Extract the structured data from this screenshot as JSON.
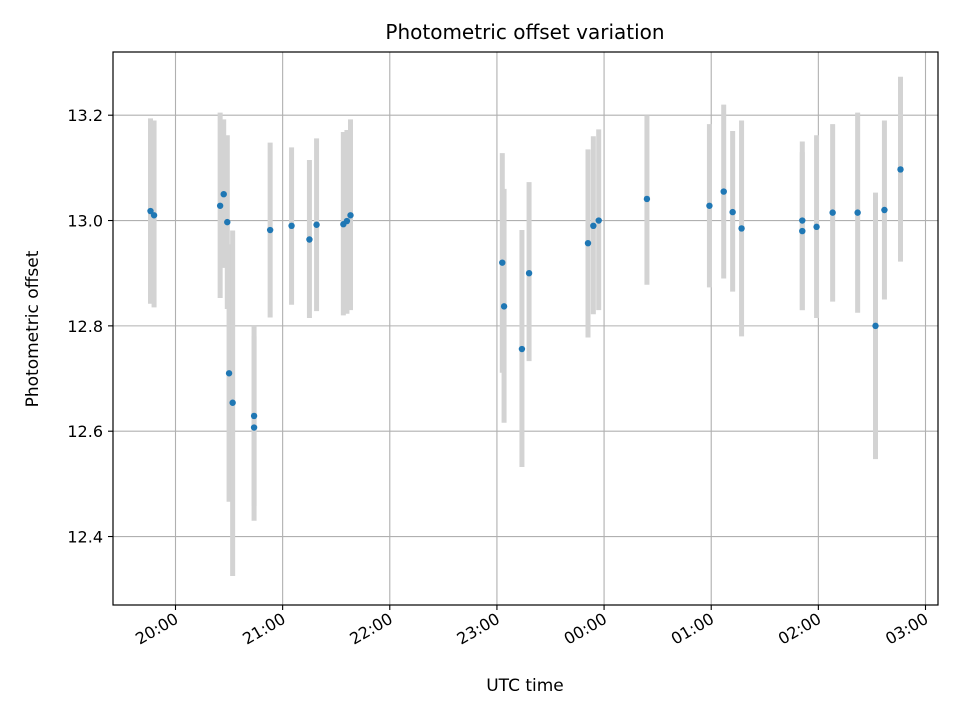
{
  "chart_data": {
    "type": "scatter",
    "title": "Photometric offset variation",
    "xlabel": "UTC time",
    "ylabel": "Photometric offset",
    "x_axis_kind": "time-of-day (UTC), crossing midnight",
    "xlim": [
      "19:25",
      "03:07"
    ],
    "ylim": [
      12.27,
      13.32
    ],
    "x_ticks": [
      "20:00",
      "21:00",
      "22:00",
      "23:00",
      "00:00",
      "01:00",
      "02:00",
      "03:00"
    ],
    "y_ticks": [
      12.4,
      12.6,
      12.8,
      13.0,
      13.2
    ],
    "y_tick_labels": [
      "12.4",
      "12.6",
      "12.8",
      "13.0",
      "13.2"
    ],
    "grid": true,
    "legend": "none",
    "colors": {
      "point": "#1f77b4",
      "errorbar": "#d3d3d3",
      "grid": "#b0b0b0",
      "axes": "#000000"
    },
    "series": [
      {
        "points": [
          {
            "t": "19:46",
            "y": 13.018,
            "lo": 12.842,
            "hi": 13.194
          },
          {
            "t": "19:48",
            "y": 13.01,
            "lo": 12.835,
            "hi": 13.19
          },
          {
            "t": "20:25",
            "y": 13.028,
            "lo": 12.853,
            "hi": 13.205
          },
          {
            "t": "20:27",
            "y": 13.05,
            "lo": 12.91,
            "hi": 13.192
          },
          {
            "t": "20:29",
            "y": 12.997,
            "lo": 12.832,
            "hi": 13.162
          },
          {
            "t": "20:30",
            "y": 12.71,
            "lo": 12.466,
            "hi": 12.955
          },
          {
            "t": "20:32",
            "y": 12.654,
            "lo": 12.325,
            "hi": 12.981
          },
          {
            "t": "20:44",
            "y": 12.629,
            "lo": 12.458,
            "hi": 12.8
          },
          {
            "t": "20:44",
            "y": 12.607,
            "lo": 12.43,
            "hi": 12.78
          },
          {
            "t": "20:53",
            "y": 12.982,
            "lo": 12.816,
            "hi": 13.148
          },
          {
            "t": "21:05",
            "y": 12.99,
            "lo": 12.84,
            "hi": 13.139
          },
          {
            "t": "21:15",
            "y": 12.964,
            "lo": 12.815,
            "hi": 13.115
          },
          {
            "t": "21:19",
            "y": 12.992,
            "lo": 12.828,
            "hi": 13.156
          },
          {
            "t": "21:34",
            "y": 12.993,
            "lo": 12.82,
            "hi": 13.168
          },
          {
            "t": "21:36",
            "y": 12.999,
            "lo": 12.823,
            "hi": 13.172
          },
          {
            "t": "21:38",
            "y": 13.01,
            "lo": 12.83,
            "hi": 13.192
          },
          {
            "t": "23:03",
            "y": 12.92,
            "lo": 12.711,
            "hi": 13.128
          },
          {
            "t": "23:04",
            "y": 12.837,
            "lo": 12.616,
            "hi": 13.06
          },
          {
            "t": "23:14",
            "y": 12.756,
            "lo": 12.532,
            "hi": 12.982
          },
          {
            "t": "23:18",
            "y": 12.9,
            "lo": 12.733,
            "hi": 13.073
          },
          {
            "t": "23:51",
            "y": 12.957,
            "lo": 12.778,
            "hi": 13.135
          },
          {
            "t": "23:54",
            "y": 12.99,
            "lo": 12.822,
            "hi": 13.16
          },
          {
            "t": "23:57",
            "y": 13.0,
            "lo": 12.83,
            "hi": 13.173
          },
          {
            "t": "00:24",
            "y": 13.041,
            "lo": 12.878,
            "hi": 13.2
          },
          {
            "t": "00:59",
            "y": 13.028,
            "lo": 12.873,
            "hi": 13.183
          },
          {
            "t": "01:07",
            "y": 13.055,
            "lo": 12.89,
            "hi": 13.22
          },
          {
            "t": "01:12",
            "y": 13.016,
            "lo": 12.865,
            "hi": 13.17
          },
          {
            "t": "01:17",
            "y": 12.985,
            "lo": 12.78,
            "hi": 13.19
          },
          {
            "t": "01:51",
            "y": 13.0,
            "lo": 12.83,
            "hi": 13.15
          },
          {
            "t": "01:51",
            "y": 12.98,
            "lo": 12.83,
            "hi": 13.13
          },
          {
            "t": "01:59",
            "y": 12.988,
            "lo": 12.815,
            "hi": 13.162
          },
          {
            "t": "02:08",
            "y": 13.015,
            "lo": 12.846,
            "hi": 13.183
          },
          {
            "t": "02:22",
            "y": 13.015,
            "lo": 12.825,
            "hi": 13.205
          },
          {
            "t": "02:32",
            "y": 12.8,
            "lo": 12.547,
            "hi": 13.053
          },
          {
            "t": "02:37",
            "y": 13.02,
            "lo": 12.85,
            "hi": 13.19
          },
          {
            "t": "02:46",
            "y": 13.097,
            "lo": 12.922,
            "hi": 13.273
          }
        ]
      }
    ]
  }
}
